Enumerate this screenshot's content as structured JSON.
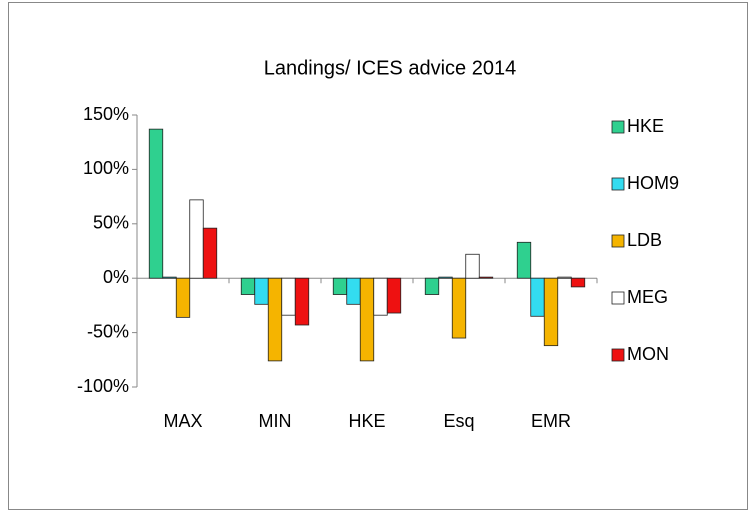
{
  "chart_data": {
    "type": "bar",
    "title": "Landings/ ICES advice 2014",
    "categories": [
      "MAX",
      "MIN",
      "HKE",
      "Esq",
      "EMR"
    ],
    "series": [
      {
        "name": "HKE",
        "color": "#2fd08f",
        "values": [
          137,
          -15,
          -15,
          -15,
          33
        ]
      },
      {
        "name": "HOM9",
        "color": "#33dcf0",
        "values": [
          1,
          -24,
          -24,
          1,
          -35
        ]
      },
      {
        "name": "LDB",
        "color": "#f5b400",
        "values": [
          -36,
          -76,
          -76,
          -55,
          -62
        ]
      },
      {
        "name": "MEG",
        "color": "#ffffff",
        "values": [
          72,
          -34,
          -34,
          22,
          1
        ]
      },
      {
        "name": "MON",
        "color": "#ee1111",
        "values": [
          46,
          -43,
          -32,
          1,
          -8
        ]
      }
    ],
    "ylim": [
      -100,
      150
    ],
    "yticks": [
      {
        "value": -100,
        "label": "-100%"
      },
      {
        "value": -50,
        "label": "-50%"
      },
      {
        "value": 0,
        "label": "0%"
      },
      {
        "value": 50,
        "label": "50%"
      },
      {
        "value": 100,
        "label": "100%"
      },
      {
        "value": 150,
        "label": "150%"
      }
    ],
    "grid": false,
    "legend": "right"
  }
}
